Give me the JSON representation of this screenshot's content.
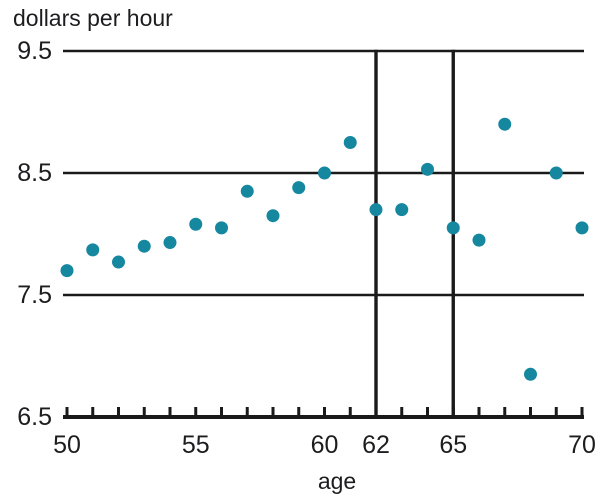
{
  "chart_data": {
    "type": "scatter",
    "title": "dollars per hour",
    "xlabel": "age",
    "ylabel": "dollars per hour",
    "xlim": [
      50,
      70
    ],
    "ylim": [
      6.5,
      9.5
    ],
    "xtick_labels": [
      "50",
      "55",
      "60",
      "62",
      "65",
      "70"
    ],
    "xtick_label_values": [
      50,
      55,
      60,
      62,
      65,
      70
    ],
    "minor_xtick_step": 1,
    "ytick_labels": [
      "9.5",
      "8.5",
      "7.5",
      "6.5"
    ],
    "ytick_values": [
      9.5,
      8.5,
      7.5,
      6.5
    ],
    "vertical_reference_lines": [
      62,
      65
    ],
    "grid": "horizontal gridlines at every y tick; bottom gridline is the x axis with upward minor ticks each year",
    "marker": {
      "shape": "circle",
      "color": "#15879f",
      "radius_px": 6.5
    },
    "axis_color": "#1a1a1a",
    "text_color": "#1d1d20",
    "background_color": "#ffffff",
    "points": [
      {
        "x": 50,
        "y": 7.7
      },
      {
        "x": 51,
        "y": 7.87
      },
      {
        "x": 52,
        "y": 7.77
      },
      {
        "x": 53,
        "y": 7.9
      },
      {
        "x": 54,
        "y": 7.93
      },
      {
        "x": 55,
        "y": 8.08
      },
      {
        "x": 56,
        "y": 8.05
      },
      {
        "x": 57,
        "y": 8.35
      },
      {
        "x": 58,
        "y": 8.15
      },
      {
        "x": 59,
        "y": 8.38
      },
      {
        "x": 60,
        "y": 8.5
      },
      {
        "x": 61,
        "y": 8.75
      },
      {
        "x": 62,
        "y": 8.2
      },
      {
        "x": 63,
        "y": 8.2
      },
      {
        "x": 64,
        "y": 8.53
      },
      {
        "x": 65,
        "y": 8.05
      },
      {
        "x": 66,
        "y": 7.95
      },
      {
        "x": 67,
        "y": 8.9
      },
      {
        "x": 68,
        "y": 6.85
      },
      {
        "x": 69,
        "y": 8.5
      },
      {
        "x": 70,
        "y": 8.05
      }
    ]
  }
}
